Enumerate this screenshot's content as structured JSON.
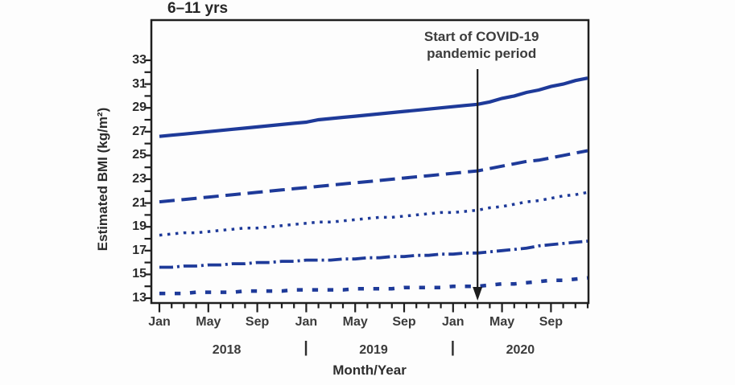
{
  "figure": {
    "background": "#fdfdfd"
  },
  "chart_data": {
    "type": "line",
    "title": "6–11 yrs",
    "xlabel": "Month/Year",
    "ylabel": "Estimated BMI (kg/m²)",
    "ylim": [
      13,
      33
    ],
    "y_ticks": [
      13,
      15,
      17,
      19,
      21,
      23,
      25,
      27,
      29,
      31,
      33
    ],
    "y_minor_tick_step": 1,
    "grid": false,
    "legend": "none",
    "line_color": "#1e3a99",
    "axis_color": "#1f1f1f",
    "x": [
      "2018-01",
      "2018-02",
      "2018-03",
      "2018-04",
      "2018-05",
      "2018-06",
      "2018-07",
      "2018-08",
      "2018-09",
      "2018-10",
      "2018-11",
      "2018-12",
      "2019-01",
      "2019-02",
      "2019-03",
      "2019-04",
      "2019-05",
      "2019-06",
      "2019-07",
      "2019-08",
      "2019-09",
      "2019-10",
      "2019-11",
      "2019-12",
      "2020-01",
      "2020-02",
      "2020-03",
      "2020-04",
      "2020-05",
      "2020-06",
      "2020-07",
      "2020-08",
      "2020-09",
      "2020-10",
      "2020-11",
      "2020-12"
    ],
    "x_labeled_months": {
      "01": "Jan",
      "05": "May",
      "09": "Sep"
    },
    "year_labels": [
      "2018",
      "2019",
      "2020"
    ],
    "year_separator": "|",
    "annotation": {
      "text": "Start of COVID-19 pandemic period",
      "x": "2020-03"
    },
    "series": [
      {
        "name": "line-1-solid",
        "style": "solid",
        "values": [
          26.6,
          26.7,
          26.8,
          26.9,
          27.0,
          27.1,
          27.2,
          27.3,
          27.4,
          27.5,
          27.6,
          27.7,
          27.8,
          28.0,
          28.1,
          28.2,
          28.3,
          28.4,
          28.5,
          28.6,
          28.7,
          28.8,
          28.9,
          29.0,
          29.1,
          29.2,
          29.3,
          29.5,
          29.8,
          30.0,
          30.3,
          30.5,
          30.8,
          31.0,
          31.3,
          31.5
        ]
      },
      {
        "name": "line-2-long-dash",
        "style": "long-dash",
        "values": [
          21.1,
          21.2,
          21.3,
          21.4,
          21.5,
          21.6,
          21.7,
          21.8,
          21.9,
          22.0,
          22.1,
          22.2,
          22.3,
          22.4,
          22.5,
          22.6,
          22.7,
          22.8,
          22.9,
          23.0,
          23.1,
          23.2,
          23.3,
          23.4,
          23.5,
          23.6,
          23.7,
          23.9,
          24.1,
          24.3,
          24.5,
          24.6,
          24.8,
          25.0,
          25.2,
          25.4
        ]
      },
      {
        "name": "line-3-dotted",
        "style": "dotted",
        "values": [
          18.3,
          18.4,
          18.5,
          18.5,
          18.6,
          18.7,
          18.8,
          18.9,
          18.9,
          19.0,
          19.1,
          19.2,
          19.3,
          19.4,
          19.4,
          19.5,
          19.6,
          19.7,
          19.8,
          19.8,
          19.9,
          20.0,
          20.1,
          20.2,
          20.2,
          20.3,
          20.4,
          20.6,
          20.7,
          20.9,
          21.1,
          21.2,
          21.4,
          21.6,
          21.7,
          21.9
        ]
      },
      {
        "name": "line-4-dash-dot",
        "style": "dash-dot",
        "values": [
          15.6,
          15.6,
          15.7,
          15.7,
          15.8,
          15.8,
          15.9,
          15.9,
          16.0,
          16.0,
          16.1,
          16.1,
          16.2,
          16.2,
          16.2,
          16.3,
          16.3,
          16.4,
          16.4,
          16.5,
          16.5,
          16.6,
          16.6,
          16.7,
          16.7,
          16.8,
          16.8,
          16.9,
          17.0,
          17.1,
          17.2,
          17.4,
          17.5,
          17.6,
          17.7,
          17.8
        ]
      },
      {
        "name": "line-5-short-dash",
        "style": "short-dash",
        "values": [
          13.4,
          13.4,
          13.4,
          13.5,
          13.5,
          13.5,
          13.5,
          13.6,
          13.6,
          13.6,
          13.6,
          13.7,
          13.7,
          13.7,
          13.7,
          13.7,
          13.8,
          13.8,
          13.8,
          13.8,
          13.9,
          13.9,
          13.9,
          13.9,
          14.0,
          14.0,
          14.0,
          14.1,
          14.2,
          14.2,
          14.3,
          14.4,
          14.5,
          14.5,
          14.6,
          14.7
        ]
      }
    ]
  }
}
